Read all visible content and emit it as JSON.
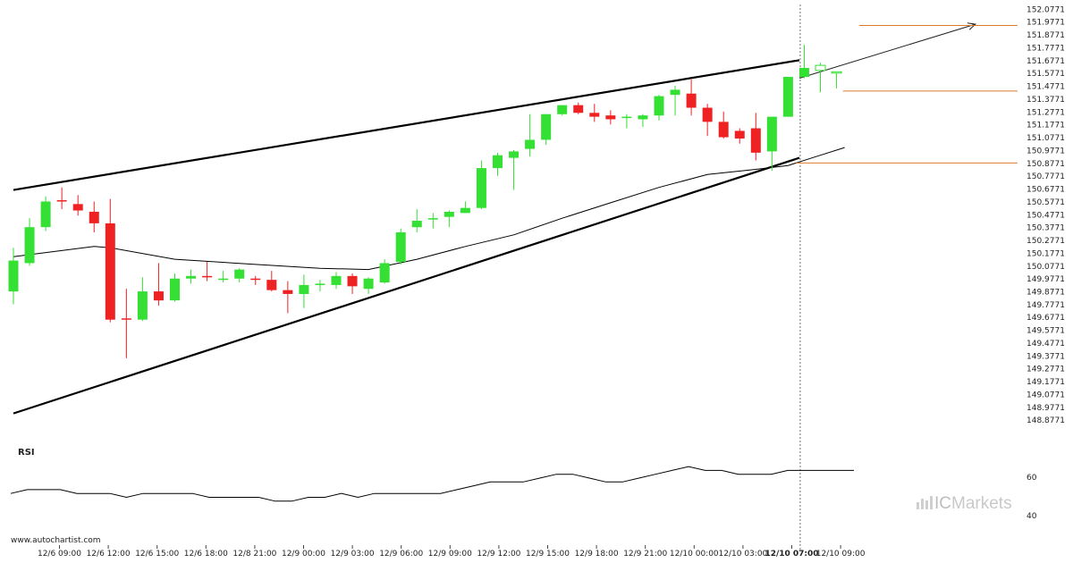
{
  "colors": {
    "bull": "#33e033",
    "bear": "#ee2222",
    "pattern": "#000000",
    "level": "#e07b2a",
    "ma": "#000000",
    "rsi": "#000000"
  },
  "watermark": {
    "site": "www.autochartist.com",
    "brand_prefix": "IC",
    "brand_suffix": "Markets",
    "brand_icon": "bar-chart-icon"
  },
  "rsi": {
    "label": "RSI",
    "ticks": [
      "60",
      "40"
    ]
  },
  "chart_data": {
    "type": "candlestick",
    "price_ticks": [
      "152.0771",
      "151.9771",
      "151.8771",
      "151.7771",
      "151.6771",
      "151.5771",
      "151.4771",
      "151.3771",
      "151.2771",
      "151.1771",
      "151.0771",
      "150.9771",
      "150.8771",
      "150.7771",
      "150.6771",
      "150.5771",
      "150.4771",
      "150.3771",
      "150.2771",
      "150.1771",
      "150.0771",
      "149.9771",
      "149.8771",
      "149.7771",
      "149.6771",
      "149.5771",
      "149.4771",
      "149.3771",
      "149.2771",
      "149.1771",
      "149.0771",
      "148.9771",
      "148.8771"
    ],
    "ylim": [
      148.83,
      152.1
    ],
    "time_labels": [
      "12/6 09:00",
      "12/6 12:00",
      "12/6 15:00",
      "12/6 18:00",
      "12/8 21:00",
      "12/9 00:00",
      "12/9 03:00",
      "12/9 06:00",
      "12/9 09:00",
      "12/9 12:00",
      "12/9 15:00",
      "12/9 18:00",
      "12/9 21:00",
      "12/10 00:00",
      "12/10 03:00",
      "12/10 07:00",
      "12/10 09:00"
    ],
    "highlight_label": "12/10 07:00",
    "candles": [
      {
        "o": 149.88,
        "h": 150.22,
        "l": 149.78,
        "c": 150.12
      },
      {
        "o": 150.1,
        "h": 150.45,
        "l": 150.08,
        "c": 150.38
      },
      {
        "o": 150.38,
        "h": 150.62,
        "l": 150.35,
        "c": 150.58
      },
      {
        "o": 150.59,
        "h": 150.69,
        "l": 150.52,
        "c": 150.58
      },
      {
        "o": 150.56,
        "h": 150.63,
        "l": 150.47,
        "c": 150.51
      },
      {
        "o": 150.5,
        "h": 150.58,
        "l": 150.34,
        "c": 150.41
      },
      {
        "o": 150.41,
        "h": 150.6,
        "l": 149.64,
        "c": 149.66
      },
      {
        "o": 149.67,
        "h": 149.9,
        "l": 149.36,
        "c": 149.66
      },
      {
        "o": 149.66,
        "h": 149.99,
        "l": 149.65,
        "c": 149.88
      },
      {
        "o": 149.88,
        "h": 150.1,
        "l": 149.77,
        "c": 149.81
      },
      {
        "o": 149.81,
        "h": 150.02,
        "l": 149.8,
        "c": 149.98
      },
      {
        "o": 149.98,
        "h": 150.05,
        "l": 149.94,
        "c": 150.0
      },
      {
        "o": 150.0,
        "h": 150.11,
        "l": 149.96,
        "c": 149.99
      },
      {
        "o": 149.97,
        "h": 150.04,
        "l": 149.95,
        "c": 149.98
      },
      {
        "o": 149.98,
        "h": 150.06,
        "l": 149.95,
        "c": 150.05
      },
      {
        "o": 149.98,
        "h": 150.0,
        "l": 149.93,
        "c": 149.97
      },
      {
        "o": 149.97,
        "h": 150.04,
        "l": 149.88,
        "c": 149.89
      },
      {
        "o": 149.89,
        "h": 149.96,
        "l": 149.71,
        "c": 149.86
      },
      {
        "o": 149.86,
        "h": 150.01,
        "l": 149.75,
        "c": 149.93
      },
      {
        "o": 149.93,
        "h": 149.97,
        "l": 149.88,
        "c": 149.94
      },
      {
        "o": 149.93,
        "h": 150.03,
        "l": 149.9,
        "c": 150.0
      },
      {
        "o": 150.0,
        "h": 150.02,
        "l": 149.86,
        "c": 149.92
      },
      {
        "o": 149.9,
        "h": 149.99,
        "l": 149.86,
        "c": 149.98
      },
      {
        "o": 149.95,
        "h": 150.13,
        "l": 149.94,
        "c": 150.1
      },
      {
        "o": 150.11,
        "h": 150.37,
        "l": 150.09,
        "c": 150.34
      },
      {
        "o": 150.38,
        "h": 150.52,
        "l": 150.34,
        "c": 150.43
      },
      {
        "o": 150.44,
        "h": 150.49,
        "l": 150.37,
        "c": 150.45
      },
      {
        "o": 150.46,
        "h": 150.51,
        "l": 150.38,
        "c": 150.5
      },
      {
        "o": 150.49,
        "h": 150.58,
        "l": 150.49,
        "c": 150.53
      },
      {
        "o": 150.53,
        "h": 150.9,
        "l": 150.52,
        "c": 150.84
      },
      {
        "o": 150.84,
        "h": 150.96,
        "l": 150.78,
        "c": 150.94
      },
      {
        "o": 150.92,
        "h": 150.98,
        "l": 150.67,
        "c": 150.97
      },
      {
        "o": 150.99,
        "h": 151.26,
        "l": 150.93,
        "c": 151.06
      },
      {
        "o": 151.06,
        "h": 151.26,
        "l": 151.02,
        "c": 151.26
      },
      {
        "o": 151.26,
        "h": 151.33,
        "l": 151.25,
        "c": 151.33
      },
      {
        "o": 151.33,
        "h": 151.35,
        "l": 151.26,
        "c": 151.27
      },
      {
        "o": 151.27,
        "h": 151.34,
        "l": 151.2,
        "c": 151.24
      },
      {
        "o": 151.25,
        "h": 151.29,
        "l": 151.18,
        "c": 151.22
      },
      {
        "o": 151.23,
        "h": 151.26,
        "l": 151.15,
        "c": 151.24
      },
      {
        "o": 151.22,
        "h": 151.26,
        "l": 151.16,
        "c": 151.25
      },
      {
        "o": 151.25,
        "h": 151.41,
        "l": 151.21,
        "c": 151.4
      },
      {
        "o": 151.41,
        "h": 151.48,
        "l": 151.25,
        "c": 151.45
      },
      {
        "o": 151.42,
        "h": 151.53,
        "l": 151.25,
        "c": 151.31
      },
      {
        "o": 151.31,
        "h": 151.34,
        "l": 151.09,
        "c": 151.2
      },
      {
        "o": 151.2,
        "h": 151.28,
        "l": 151.07,
        "c": 151.08
      },
      {
        "o": 151.13,
        "h": 151.15,
        "l": 151.03,
        "c": 151.07
      },
      {
        "o": 151.15,
        "h": 151.27,
        "l": 150.9,
        "c": 150.96
      },
      {
        "o": 150.97,
        "h": 151.22,
        "l": 150.82,
        "c": 151.24
      },
      {
        "o": 151.24,
        "h": 151.55,
        "l": 151.24,
        "c": 151.55
      },
      {
        "o": 151.55,
        "h": 151.8,
        "l": 151.54,
        "c": 151.62
      },
      {
        "o": 151.6,
        "h": 151.66,
        "l": 151.43,
        "c": 151.64
      },
      {
        "o": 151.58,
        "h": 151.59,
        "l": 151.46,
        "c": 151.59
      }
    ],
    "channel_upper": {
      "t": [
        0,
        48.7
      ],
      "price": [
        150.67,
        151.68
      ]
    },
    "channel_lower": {
      "t": [
        0,
        48.7
      ],
      "price": [
        148.93,
        150.92
      ]
    },
    "projection": {
      "t": [
        48.7,
        59.6
      ],
      "price": [
        151.54,
        151.96
      ]
    },
    "target_levels": [
      {
        "price": 151.95,
        "t_start": 52.4
      },
      {
        "price": 151.44,
        "t_start": 51.4
      },
      {
        "price": 150.88,
        "t_start": 48.5
      }
    ],
    "moving_average": {
      "t": [
        0,
        5,
        6,
        10,
        15,
        19,
        22,
        25,
        28,
        31,
        34,
        37,
        40,
        43,
        46,
        48,
        50,
        51.5
      ],
      "price": [
        150.15,
        150.23,
        150.22,
        150.13,
        150.09,
        150.06,
        150.05,
        150.13,
        150.23,
        150.32,
        150.45,
        150.57,
        150.69,
        150.79,
        150.83,
        150.86,
        150.94,
        151.0
      ]
    },
    "rsi": {
      "ylim": [
        35,
        75
      ],
      "values": [
        52,
        54,
        54,
        54,
        52,
        52,
        52,
        50,
        52,
        52,
        52,
        52,
        50,
        50,
        50,
        50,
        48,
        48,
        50,
        50,
        52,
        50,
        52,
        52,
        52,
        52,
        52,
        54,
        56,
        58,
        58,
        58,
        60,
        62,
        62,
        60,
        58,
        58,
        60,
        62,
        64,
        66,
        64,
        64,
        62,
        62,
        62,
        64,
        64,
        64,
        64,
        64
      ]
    }
  }
}
